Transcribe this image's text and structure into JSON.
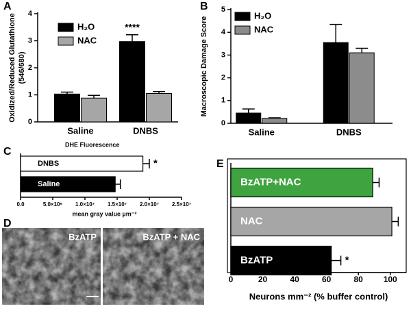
{
  "chart_data": [
    {
      "type": "bar",
      "panel": "A",
      "ylabel": [
        "Oxidized/Reduced Glutathione",
        "(546/680)"
      ],
      "categories": [
        "Saline",
        "DNBS"
      ],
      "series": [
        {
          "name": "H₂O",
          "color": "#000000",
          "values": [
            1.03,
            2.97
          ],
          "errors": [
            0.07,
            0.25
          ]
        },
        {
          "name": "NAC",
          "color": "#a6a6a6",
          "values": [
            0.88,
            1.05
          ],
          "errors": [
            0.1,
            0.07
          ]
        }
      ],
      "ylim": [
        0,
        4
      ],
      "yticks": [
        0,
        1,
        2,
        3,
        4
      ],
      "annotation": "****"
    },
    {
      "type": "bar",
      "panel": "B",
      "ylabel": [
        "Macroscopic Damage Score"
      ],
      "categories": [
        "Saline",
        "DNBS"
      ],
      "series": [
        {
          "name": "H₂O",
          "color": "#000000",
          "values": [
            0.45,
            3.55
          ],
          "errors": [
            0.18,
            0.8
          ]
        },
        {
          "name": "NAC",
          "color": "#8c8c8c",
          "values": [
            0.22,
            3.1
          ],
          "errors": [
            0.02,
            0.2
          ]
        }
      ],
      "ylim": [
        0,
        5
      ],
      "yticks": [
        0,
        1,
        2,
        3,
        4,
        5
      ]
    },
    {
      "type": "hbar",
      "panel": "C",
      "title": "DHE Fluorescence",
      "xlabel": "mean gray value µm⁻²",
      "categories": [
        "DNBS",
        "Saline"
      ],
      "values": [
        19000000,
        14700000
      ],
      "errors": [
        1000000,
        800000
      ],
      "colors": [
        "#ffffff",
        "#000000"
      ],
      "label_colors": [
        "#000000",
        "#ffffff"
      ],
      "xlim": [
        0,
        25000000
      ],
      "xticks": [
        {
          "value": 0,
          "label": "0.0"
        },
        {
          "value": 5000000,
          "label": "5.0×10⁶"
        },
        {
          "value": 10000000,
          "label": "1.0×10⁷"
        },
        {
          "value": 15000000,
          "label": "1.5×10⁷"
        },
        {
          "value": 20000000,
          "label": "2.0×10⁷"
        },
        {
          "value": 25000000,
          "label": "2.5×10⁷"
        }
      ],
      "annotation": "*"
    },
    {
      "type": "image",
      "panel": "D",
      "labels": [
        "BzATP",
        "BzATP + NAC"
      ]
    },
    {
      "type": "hbar",
      "panel": "E",
      "xlabel": "Neurons mm⁻² (% buffer control)",
      "categories": [
        "BzATP+NAC",
        "NAC",
        "BzATP"
      ],
      "values": [
        89,
        101,
        63
      ],
      "errors": [
        4,
        4,
        6
      ],
      "colors": [
        "#3fa33f",
        "#a6a6a6",
        "#000000"
      ],
      "label_colors": [
        "#ffffff",
        "#ffffff",
        "#ffffff"
      ],
      "xlim": [
        0,
        110
      ],
      "xticks": [
        0,
        20,
        40,
        60,
        80,
        100
      ],
      "annotation": "*"
    }
  ]
}
